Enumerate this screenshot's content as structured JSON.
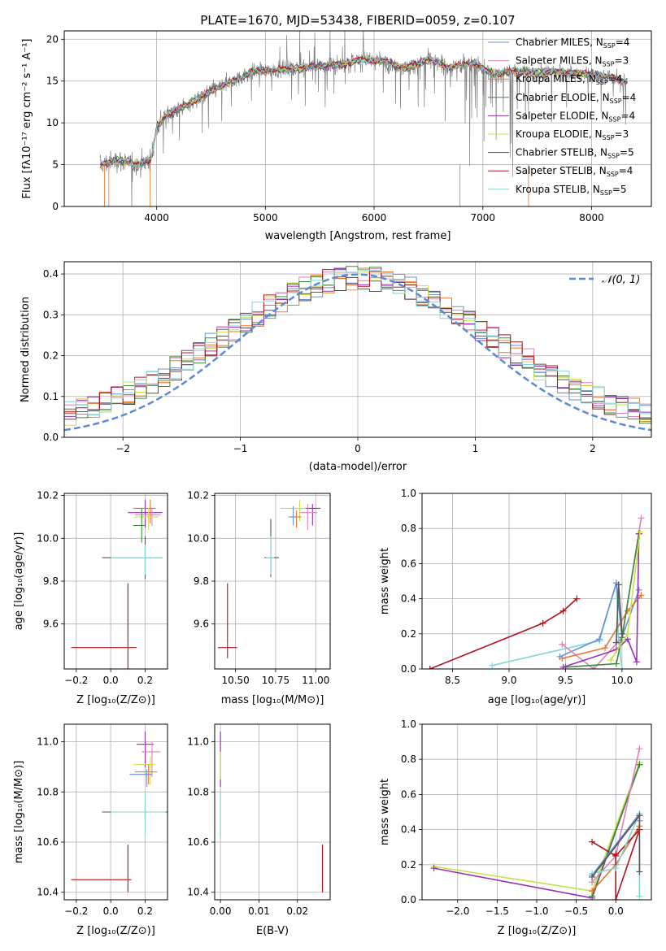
{
  "title": "PLATE=1670, MJD=53438, FIBERID=0059, z=0.107",
  "colors": {
    "chabrier_miles": "#6a8fd6",
    "salpeter_miles": "#e07fbf",
    "kroupa_miles": "#e8752a",
    "chabrier_elodie": "#3a8a3a",
    "salpeter_elodie": "#9a2fb5",
    "kroupa_elodie": "#c8e04a",
    "chabrier_stelib": "#555555",
    "salpeter_stelib": "#b0141a",
    "kroupa_stelib": "#7ed6d6",
    "data": "#808080",
    "gaussian": "#5b8ad6"
  },
  "chart_data": [
    {
      "id": "spectrum",
      "type": "line",
      "xlabel": "wavelength [Angstrom, rest frame]",
      "ylabel": "Flux [fλ10⁻¹⁷ erg cm⁻² s⁻¹ A⁻¹]",
      "xlim": [
        3150,
        8550
      ],
      "ylim": [
        0,
        21
      ],
      "xticks": [
        "4000",
        "5000",
        "6000",
        "7000",
        "8000"
      ],
      "yticks": [
        "0",
        "5",
        "10",
        "15",
        "20"
      ],
      "legend_position": "top-right",
      "legend": [
        "Chabrier MILES, N_SSP=4",
        "Salpeter MILES, N_SSP=3",
        "Kroupa MILES, N_SSP=4",
        "Chabrier ELODIE, N_SSP=4",
        "Salpeter ELODIE, N_SSP=4",
        "Kroupa ELODIE, N_SSP=3",
        "Chabrier STELIB, N_SSP=5",
        "Salpeter STELIB, N_SSP=4",
        "Kroupa STELIB, N_SSP=5"
      ],
      "continuum": {
        "x": [
          3500,
          3650,
          3800,
          3950,
          4000,
          4100,
          4300,
          4500,
          4700,
          4900,
          5100,
          5300,
          5500,
          5700,
          5900,
          6100,
          6300,
          6500,
          6700,
          6900,
          7100,
          7300,
          7500,
          7700,
          7900,
          8100,
          8300
        ],
        "y": [
          5.0,
          5.6,
          5.0,
          5.6,
          9.5,
          11.0,
          12.3,
          13.8,
          15.0,
          16.2,
          16.3,
          16.6,
          16.8,
          17.0,
          17.6,
          17.3,
          16.6,
          17.6,
          16.6,
          17.2,
          15.8,
          16.2,
          16.0,
          16.1,
          15.9,
          15.7,
          15.0
        ]
      }
    },
    {
      "id": "residuals",
      "type": "bar",
      "xlabel": "(data-model)/error",
      "ylabel": "Normed distribution",
      "xlim": [
        -2.5,
        2.5
      ],
      "ylim": [
        0,
        0.43
      ],
      "xticks": [
        "−2",
        "−1",
        "0",
        "1",
        "2"
      ],
      "yticks": [
        "0.0",
        "0.1",
        "0.2",
        "0.3",
        "0.4"
      ],
      "legend": "𝒩(0, 1)",
      "legend_position": "top-right",
      "gaussian": {
        "mu": 0,
        "sigma": 1
      }
    },
    {
      "id": "age-Z",
      "type": "scatter",
      "xlabel": "Z [log₁₀(Z/Z⊙)]",
      "ylabel": "age  [log₁₀(age/yr)]",
      "xlim": [
        -0.27,
        0.33
      ],
      "ylim": [
        9.39,
        10.21
      ],
      "xticks": [
        "−0.2",
        "0.0",
        "0.2"
      ],
      "yticks": [
        "9.6",
        "9.8",
        "10.0",
        "10.2"
      ]
    },
    {
      "id": "age-mass",
      "type": "scatter",
      "xlabel": "mass [log₁₀(M/M⊙)]",
      "ylabel": "",
      "xlim": [
        10.37,
        11.09
      ],
      "ylim": [
        9.39,
        10.21
      ],
      "xticks": [
        "10.50",
        "10.75",
        "11.00"
      ],
      "yticks": [
        "9.6",
        "9.8",
        "10.0",
        "10.2"
      ]
    },
    {
      "id": "weight-age",
      "type": "line",
      "xlabel": "age  [log₁₀(age/yr)]",
      "ylabel": "mass weight",
      "xlim": [
        8.23,
        10.26
      ],
      "ylim": [
        0,
        1
      ],
      "xticks": [
        "8.5",
        "9.0",
        "9.5",
        "10.0"
      ],
      "yticks": [
        "0.0",
        "0.2",
        "0.4",
        "0.6",
        "0.8",
        "1.0"
      ],
      "series": [
        {
          "key": "salpeter_stelib",
          "x": [
            8.3,
            9.3,
            9.48,
            9.6
          ],
          "y": [
            0.0,
            0.26,
            0.33,
            0.4
          ]
        },
        {
          "key": "kroupa_stelib",
          "x": [
            8.85,
            9.8,
            9.95,
            9.97,
            10.0
          ],
          "y": [
            0.02,
            0.16,
            0.49,
            0.16,
            0.0
          ]
        },
        {
          "key": "chabrier_miles",
          "x": [
            9.45,
            9.8,
            9.95,
            10.0,
            10.15
          ],
          "y": [
            0.07,
            0.17,
            0.49,
            0.18,
            0.45
          ]
        },
        {
          "key": "salpeter_miles",
          "x": [
            9.47,
            9.75,
            10.0,
            10.17
          ],
          "y": [
            0.14,
            0.0,
            0.18,
            0.86
          ]
        },
        {
          "key": "kroupa_miles",
          "x": [
            9.47,
            9.85,
            10.05,
            10.17
          ],
          "y": [
            0.06,
            0.12,
            0.33,
            0.42
          ]
        },
        {
          "key": "chabrier_elodie",
          "x": [
            9.5,
            9.95,
            10.0,
            10.15
          ],
          "y": [
            0.01,
            0.03,
            0.18,
            0.77
          ]
        },
        {
          "key": "salpeter_elodie",
          "x": [
            9.48,
            9.95,
            10.05,
            10.13,
            10.15
          ],
          "y": [
            0.01,
            0.11,
            0.17,
            0.04,
            0.77
          ]
        },
        {
          "key": "kroupa_elodie",
          "x": [
            9.9,
            10.05,
            10.16
          ],
          "y": [
            0.05,
            0.2,
            0.78
          ]
        },
        {
          "key": "chabrier_stelib",
          "x": [
            9.95,
            9.97,
            10.0
          ],
          "y": [
            0.15,
            0.48,
            0.2
          ]
        }
      ]
    },
    {
      "id": "mass-Z",
      "type": "scatter",
      "xlabel": "Z [log₁₀(Z/Z⊙)]",
      "ylabel": "mass [log₁₀(M/M⊙)]",
      "xlim": [
        -0.27,
        0.33
      ],
      "ylim": [
        10.37,
        11.07
      ],
      "xticks": [
        "−0.2",
        "0.0",
        "0.2"
      ],
      "yticks": [
        "10.4",
        "10.6",
        "10.8",
        "11.0"
      ]
    },
    {
      "id": "mass-EBV",
      "type": "scatter",
      "xlabel": "E(B-V)",
      "ylabel": "",
      "xlim": [
        -0.0015,
        0.0285
      ],
      "ylim": [
        10.37,
        11.07
      ],
      "xticks": [
        "0.00",
        "0.01",
        "0.02"
      ],
      "yticks": [
        "10.4",
        "10.6",
        "10.8",
        "11.0"
      ]
    },
    {
      "id": "weight-Z",
      "type": "line",
      "xlabel": "Z [log₁₀(Z/Z⊙)]",
      "ylabel": "mass weight",
      "xlim": [
        -2.45,
        0.45
      ],
      "ylim": [
        0,
        1
      ],
      "xticks": [
        "−2.0",
        "−1.5",
        "−1.0",
        "−0.5",
        "0.0"
      ],
      "yticks": [
        "0.0",
        "0.2",
        "0.4",
        "0.6",
        "0.8",
        "1.0"
      ],
      "series": [
        {
          "key": "kroupa_elodie",
          "x": [
            -2.3,
            -0.3,
            0.3
          ],
          "y": [
            0.19,
            0.05,
            0.78
          ]
        },
        {
          "key": "salpeter_elodie",
          "x": [
            -2.3,
            -0.3,
            0.3
          ],
          "y": [
            0.18,
            0.01,
            0.77
          ]
        },
        {
          "key": "chabrier_elodie",
          "x": [
            -0.3,
            0.3
          ],
          "y": [
            0.02,
            0.77
          ]
        },
        {
          "key": "salpeter_miles",
          "x": [
            -0.3,
            0.0,
            0.3
          ],
          "y": [
            0.1,
            0.25,
            0.86
          ]
        },
        {
          "key": "kroupa_miles",
          "x": [
            -0.3,
            0.0,
            0.3
          ],
          "y": [
            0.05,
            0.2,
            0.42
          ]
        },
        {
          "key": "salpeter_stelib",
          "x": [
            -0.3,
            0.0,
            0.3,
            0.0,
            0.0
          ],
          "y": [
            0.33,
            0.25,
            0.4,
            0.0,
            0.26
          ]
        },
        {
          "key": "chabrier_miles",
          "x": [
            -0.3,
            0.3,
            0.3
          ],
          "y": [
            0.14,
            0.49,
            0.45
          ]
        },
        {
          "key": "kroupa_stelib",
          "x": [
            -0.3,
            0.0,
            0.3,
            0.3
          ],
          "y": [
            0.15,
            0.18,
            0.49,
            0.02
          ]
        },
        {
          "key": "chabrier_stelib",
          "x": [
            -0.3,
            0.3,
            0.3
          ],
          "y": [
            0.13,
            0.48,
            0.16
          ]
        }
      ]
    }
  ]
}
